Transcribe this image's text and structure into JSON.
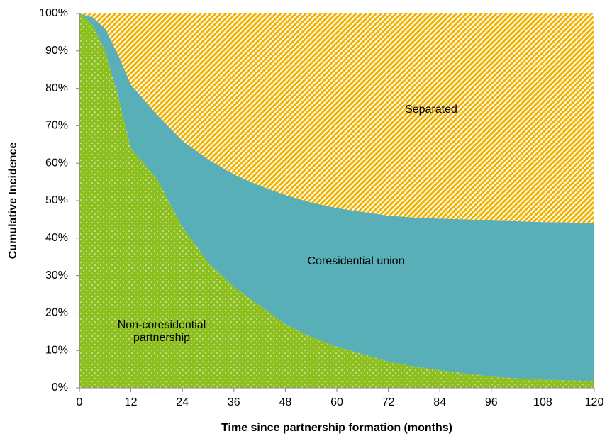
{
  "chart_data": {
    "type": "stacked-area",
    "x_label": "Time since partnership formation (months)",
    "y_label": "Cumulative Incidence",
    "x": [
      0,
      3,
      6,
      9,
      12,
      18,
      24,
      30,
      36,
      42,
      48,
      54,
      60,
      66,
      72,
      78,
      84,
      90,
      96,
      102,
      108,
      114,
      120
    ],
    "series": [
      {
        "name": "Non-coresidential partnership",
        "color": "#8cbf1f",
        "values": [
          100,
          97,
          90,
          78,
          64,
          56,
          43,
          33.5,
          27,
          22,
          17,
          13.6,
          11,
          9,
          7,
          5.7,
          4.7,
          3.8,
          3,
          2.5,
          2.2,
          2,
          1.8
        ]
      },
      {
        "name": "Coresidential union",
        "color": "#58afb8",
        "values": [
          0,
          2,
          6,
          11,
          17,
          17,
          23,
          27.5,
          30,
          32,
          34.5,
          35.9,
          37,
          38,
          39,
          39.8,
          40.5,
          41.2,
          41.7,
          42,
          42.1,
          42.2,
          42.2
        ]
      },
      {
        "name": "Separated",
        "color": "#f2b200",
        "values": [
          0,
          1,
          4,
          11,
          19,
          27,
          34,
          39,
          43,
          46,
          48.5,
          50.5,
          52,
          53,
          54,
          54.5,
          54.8,
          55,
          55.3,
          55.5,
          55.7,
          55.8,
          56
        ]
      }
    ],
    "xlim": [
      0,
      120
    ],
    "xticks": [
      0,
      12,
      24,
      36,
      48,
      60,
      72,
      84,
      96,
      108,
      120
    ],
    "ylim": [
      0,
      100
    ],
    "yticks": [
      {
        "value": 0,
        "label": "0%"
      },
      {
        "value": 10,
        "label": "10%"
      },
      {
        "value": 20,
        "label": "20%"
      },
      {
        "value": 30,
        "label": "30%"
      },
      {
        "value": 40,
        "label": "40%"
      },
      {
        "value": 50,
        "label": "50%"
      },
      {
        "value": 60,
        "label": "60%"
      },
      {
        "value": 70,
        "label": "70%"
      },
      {
        "value": 80,
        "label": "80%"
      },
      {
        "value": 90,
        "label": "90%"
      },
      {
        "value": 100,
        "label": "100%"
      }
    ]
  }
}
